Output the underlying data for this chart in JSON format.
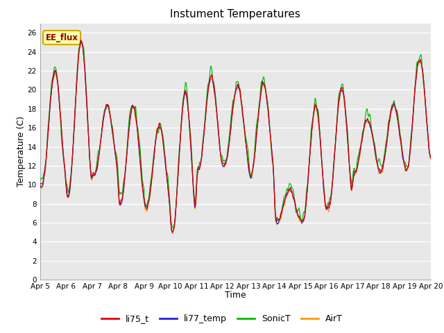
{
  "title": "Instument Temperatures",
  "xlabel": "Time",
  "ylabel": "Temperature (C)",
  "ylim": [
    0,
    27
  ],
  "yticks": [
    0,
    2,
    4,
    6,
    8,
    10,
    12,
    14,
    16,
    18,
    20,
    22,
    24,
    26
  ],
  "x_labels": [
    "Apr 5",
    "Apr 6",
    "Apr 7",
    "Apr 8",
    "Apr 9",
    "Apr 10",
    "Apr 11",
    "Apr 12",
    "Apr 13",
    "Apr 14",
    "Apr 15",
    "Apr 16",
    "Apr 17",
    "Apr 18",
    "Apr 19",
    "Apr 20"
  ],
  "n_days": 15,
  "series_colors": [
    "#dd0000",
    "#2222cc",
    "#00bb00",
    "#ff9900"
  ],
  "series_names": [
    "li75_t",
    "li77_temp",
    "SonicT",
    "AirT"
  ],
  "bg_color": "#e8e8e8",
  "grid_color": "#ffffff",
  "annotation_text": "EE_flux",
  "annotation_fg": "#880000",
  "annotation_bg": "#ffffaa",
  "annotation_border": "#ccaa00"
}
